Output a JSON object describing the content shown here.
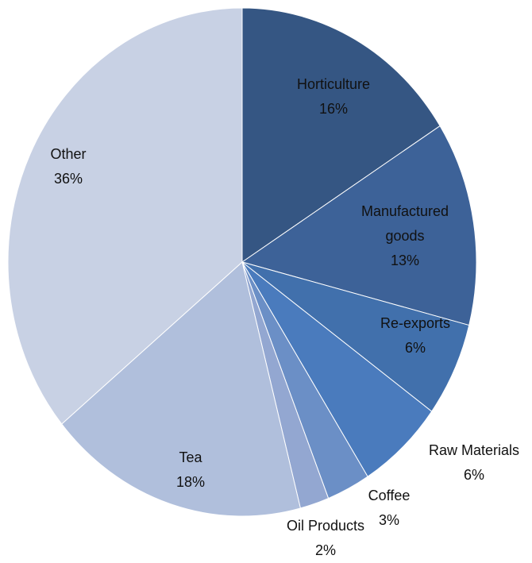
{
  "chart_data": {
    "type": "pie",
    "title": "",
    "slices": [
      {
        "name": "Horticulture",
        "value": 16,
        "label_lines": [
          "Horticulture"
        ],
        "pct_label": "16%",
        "color": "#355683"
      },
      {
        "name": "Manufactured goods",
        "value": 13,
        "label_lines": [
          "Manufactured",
          "goods"
        ],
        "pct_label": "13%",
        "color": "#3d6298"
      },
      {
        "name": "Re-exports",
        "value": 6,
        "label_lines": [
          "Re-exports"
        ],
        "pct_label": "6%",
        "color": "#4170ac"
      },
      {
        "name": "Raw Materials",
        "value": 6,
        "label_lines": [
          "Raw Materials"
        ],
        "pct_label": "6%",
        "color": "#4a7bbd"
      },
      {
        "name": "Coffee",
        "value": 3,
        "label_lines": [
          "Coffee"
        ],
        "pct_label": "3%",
        "color": "#6b8fc6"
      },
      {
        "name": "Oil Products",
        "value": 2,
        "label_lines": [
          "Oil Products"
        ],
        "pct_label": "2%",
        "color": "#93a7d1"
      },
      {
        "name": "Tea",
        "value": 18,
        "label_lines": [
          "Tea"
        ],
        "pct_label": "18%",
        "color": "#b0bfdc"
      },
      {
        "name": "Other",
        "value": 36,
        "label_lines": [
          "Other"
        ],
        "pct_label": "36%",
        "color": "#c8d1e4"
      }
    ]
  }
}
